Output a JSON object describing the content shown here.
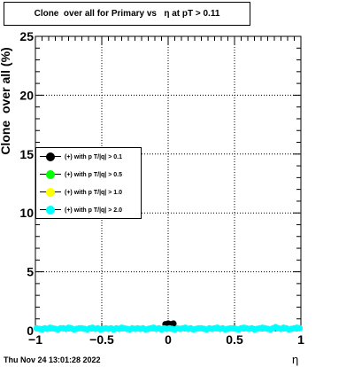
{
  "title": "Clone  over all for Primary vs   η at pT > 0.11",
  "footer": "Thu Nov 24 13:01:28 2022",
  "chart_data": {
    "type": "scatter",
    "xlabel": "η",
    "ylabel": "Clone  over all (%)",
    "xlim": [
      -1,
      1
    ],
    "ylim": [
      0,
      25
    ],
    "x_ticks": [
      "−1",
      "−0.5",
      "0",
      "0.5",
      "1"
    ],
    "y_ticks": [
      "0",
      "5",
      "10",
      "15",
      "20",
      "25"
    ],
    "grid": true,
    "legend_position": "left-middle",
    "series": [
      {
        "name": "(+) with p T/|q| > 0.1",
        "color": "#000000",
        "x": [
          -0.02,
          0.0,
          0.02,
          0.04
        ],
        "y": [
          0.55,
          0.6,
          0.55,
          0.6
        ]
      },
      {
        "name": "(+) with p T/|q| > 0.5",
        "color": "#00ff00",
        "x": [],
        "y": []
      },
      {
        "name": "(+) with p T/|q| > 1.0",
        "color": "#ffff00",
        "x": [],
        "y": []
      },
      {
        "name": "(+) with p T/|q| > 2.0",
        "color": "#00ffff",
        "x": [
          -0.99,
          -0.97,
          -0.95,
          -0.93,
          -0.91,
          -0.89,
          -0.87,
          -0.85,
          -0.83,
          -0.81,
          -0.79,
          -0.77,
          -0.75,
          -0.73,
          -0.71,
          -0.69,
          -0.67,
          -0.65,
          -0.63,
          -0.61,
          -0.59,
          -0.57,
          -0.55,
          -0.53,
          -0.51,
          -0.49,
          -0.47,
          -0.45,
          -0.43,
          -0.41,
          -0.39,
          -0.37,
          -0.35,
          -0.33,
          -0.31,
          -0.29,
          -0.27,
          -0.25,
          -0.23,
          -0.21,
          -0.19,
          -0.17,
          -0.15,
          -0.13,
          -0.11,
          -0.09,
          -0.07,
          -0.05,
          -0.03,
          -0.01,
          0.01,
          0.03,
          0.05,
          0.07,
          0.09,
          0.11,
          0.13,
          0.15,
          0.17,
          0.19,
          0.21,
          0.23,
          0.25,
          0.27,
          0.29,
          0.31,
          0.33,
          0.35,
          0.37,
          0.39,
          0.41,
          0.43,
          0.45,
          0.47,
          0.49,
          0.51,
          0.53,
          0.55,
          0.57,
          0.59,
          0.61,
          0.63,
          0.65,
          0.67,
          0.69,
          0.71,
          0.73,
          0.75,
          0.77,
          0.79,
          0.81,
          0.83,
          0.85,
          0.87,
          0.89,
          0.91,
          0.93,
          0.95,
          0.97,
          0.99
        ],
        "y": [
          0.2,
          0.15,
          0.1,
          0.2,
          0.15,
          0.25,
          0.2,
          0.15,
          0.1,
          0.2,
          0.2,
          0.15,
          0.25,
          0.2,
          0.1,
          0.15,
          0.2,
          0.2,
          0.15,
          0.1,
          0.2,
          0.25,
          0.15,
          0.2,
          0.1,
          0.15,
          0.2,
          0.15,
          0.2,
          0.1,
          0.2,
          0.15,
          0.25,
          0.2,
          0.15,
          0.1,
          0.2,
          0.15,
          0.2,
          0.15,
          0.2,
          0.1,
          0.15,
          0.2,
          0.25,
          0.15,
          0.2,
          0.1,
          0.2,
          0.15,
          0.2,
          0.15,
          0.1,
          0.2,
          0.15,
          0.2,
          0.25,
          0.15,
          0.2,
          0.1,
          0.15,
          0.2,
          0.2,
          0.15,
          0.1,
          0.2,
          0.15,
          0.2,
          0.25,
          0.15,
          0.2,
          0.1,
          0.15,
          0.2,
          0.2,
          0.15,
          0.1,
          0.2,
          0.25,
          0.2,
          0.15,
          0.2,
          0.1,
          0.15,
          0.2,
          0.25,
          0.2,
          0.15,
          0.1,
          0.2,
          0.3,
          0.2,
          0.15,
          0.25,
          0.2,
          0.1,
          0.15,
          0.2,
          0.25,
          0.2
        ]
      }
    ]
  }
}
